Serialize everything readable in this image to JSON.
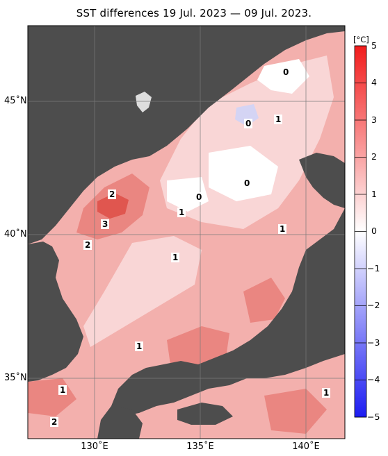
{
  "title": "SST differences 19 Jul. 2023 — 09 Jul. 2023.",
  "map": {
    "lat_ticks": [
      "45˚N",
      "40˚N",
      "35˚N"
    ],
    "lon_ticks": [
      "130˚E",
      "135˚E",
      "140˚E"
    ],
    "extent_lon": [
      127,
      142
    ],
    "extent_lat": [
      33,
      47.5
    ],
    "contour_labels": [
      "0",
      "0",
      "0",
      "0",
      "1",
      "2",
      "3",
      "1",
      "2",
      "1",
      "1",
      "1",
      "1",
      "2",
      "1"
    ]
  },
  "colorbar": {
    "unit": "[°C]",
    "ticks": [
      "5",
      "4",
      "3",
      "2",
      "1",
      "0",
      "−1",
      "−2",
      "−3",
      "−4",
      "−5"
    ],
    "range": [
      -5,
      5
    ],
    "colors": {
      "max": "#f21c1c",
      "mid": "#ffffff",
      "min": "#1c1cf2"
    }
  },
  "colors": {
    "land": "#4d4d4d",
    "sea_warm_1": "#f9d6d6",
    "sea_warm_2": "#f3b0ad",
    "sea_warm_3": "#ea8681",
    "sea_warm_4": "#e0564f",
    "sea_cool_1": "#d4d4f4"
  }
}
